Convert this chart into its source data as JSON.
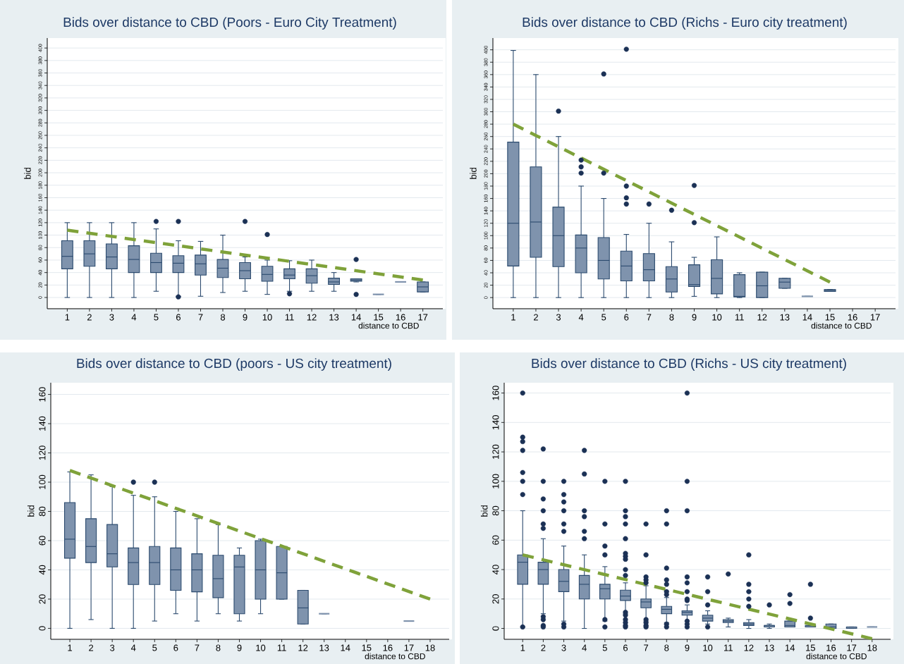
{
  "chart_data": [
    {
      "type": "box",
      "title": "Bids over distance to CBD (Poors - Euro City Treatment)",
      "xlabel": "distance to CBD",
      "ylabel": "bid",
      "categories": [
        "1",
        "2",
        "3",
        "4",
        "5",
        "6",
        "7",
        "8",
        "9",
        "10",
        "11",
        "12",
        "13",
        "14",
        "15",
        "16",
        "17"
      ],
      "ylim": [
        -18,
        416
      ],
      "yticks": [
        0,
        20,
        40,
        60,
        80,
        100,
        120,
        140,
        160,
        180,
        200,
        220,
        240,
        260,
        280,
        300,
        320,
        340,
        360,
        380,
        400
      ],
      "grid": "y",
      "line_style": "dashed",
      "series": [
        {
          "type": "box",
          "color": "#7f93ad",
          "boxes": [
            {
              "low": 0,
              "q1": 46,
              "median": 66,
              "q3": 91,
              "high": 120
            },
            {
              "low": 0,
              "q1": 50,
              "median": 70,
              "q3": 91,
              "high": 120
            },
            {
              "low": 0,
              "q1": 46,
              "median": 65,
              "q3": 86,
              "high": 120
            },
            {
              "low": 0,
              "q1": 40,
              "median": 61,
              "q3": 83,
              "high": 120
            },
            {
              "low": 10,
              "q1": 40,
              "median": 56,
              "q3": 71,
              "high": 110,
              "outliers": [
                122
              ]
            },
            {
              "low": 2,
              "q1": 40,
              "median": 55,
              "q3": 67,
              "high": 91,
              "outliers": [
                122,
                1
              ]
            },
            {
              "low": 2,
              "q1": 36,
              "median": 54,
              "q3": 68,
              "high": 90
            },
            {
              "low": 8,
              "q1": 32,
              "median": 47,
              "q3": 61,
              "high": 100
            },
            {
              "low": 10,
              "q1": 30,
              "median": 43,
              "q3": 56,
              "high": 65,
              "outliers": [
                122
              ]
            },
            {
              "low": 5,
              "q1": 26,
              "median": 37,
              "q3": 50,
              "high": 60,
              "outliers": [
                101
              ]
            },
            {
              "low": 10,
              "q1": 30,
              "median": 36,
              "q3": 46,
              "high": 59,
              "outliers": [
                6
              ]
            },
            {
              "low": 10,
              "q1": 23,
              "median": 35,
              "q3": 46,
              "high": 60
            },
            {
              "low": 10,
              "q1": 21,
              "median": 25,
              "q3": 31,
              "high": 40
            },
            {
              "low": 25,
              "q1": 26,
              "median": 28,
              "q3": 30,
              "high": 30,
              "outliers": [
                61,
                5
              ]
            },
            {
              "low": 5,
              "q1": 5,
              "median": 5,
              "q3": 5,
              "high": 5
            },
            {
              "low": 25,
              "q1": 25,
              "median": 25,
              "q3": 25,
              "high": 25
            },
            {
              "low": 9,
              "q1": 9,
              "median": 17,
              "q3": 25,
              "high": 25
            }
          ]
        },
        {
          "type": "line",
          "color": "#7fa23a",
          "x": [
            "1",
            "17"
          ],
          "values": [
            108,
            28
          ]
        }
      ]
    },
    {
      "type": "box",
      "title": "Bids over distance to CBD (Richs - Euro city treatment)",
      "xlabel": "distance to CBD",
      "ylabel": "bid",
      "categories": [
        "1",
        "2",
        "3",
        "4",
        "5",
        "6",
        "7",
        "8",
        "9",
        "10",
        "11",
        "12",
        "13",
        "14",
        "15",
        "16",
        "17"
      ],
      "ylim": [
        -18,
        419
      ],
      "yticks": [
        0,
        20,
        40,
        60,
        80,
        100,
        120,
        140,
        160,
        180,
        200,
        220,
        240,
        260,
        280,
        300,
        320,
        340,
        360,
        380,
        400
      ],
      "grid": "y",
      "line_style": "dashed",
      "series": [
        {
          "type": "box",
          "color": "#7f93ad",
          "boxes": [
            {
              "low": 0,
              "q1": 51,
              "median": 120,
              "q3": 251,
              "high": 399
            },
            {
              "low": 0,
              "q1": 65,
              "median": 122,
              "q3": 211,
              "high": 360
            },
            {
              "low": 0,
              "q1": 50,
              "median": 100,
              "q3": 146,
              "high": 260,
              "outliers": [
                301
              ]
            },
            {
              "low": 0,
              "q1": 40,
              "median": 80,
              "q3": 101,
              "high": 180,
              "outliers": [
                222,
                211,
                201
              ]
            },
            {
              "low": 0,
              "q1": 30,
              "median": 60,
              "q3": 97,
              "high": 160,
              "outliers": [
                361,
                201
              ]
            },
            {
              "low": 0,
              "q1": 27,
              "median": 51,
              "q3": 75,
              "high": 102,
              "outliers": [
                401,
                180,
                161,
                151
              ]
            },
            {
              "low": 0,
              "q1": 27,
              "median": 45,
              "q3": 71,
              "high": 120,
              "outliers": [
                151
              ]
            },
            {
              "low": 0,
              "q1": 9,
              "median": 30,
              "q3": 50,
              "high": 90,
              "outliers": [
                141
              ]
            },
            {
              "low": 2,
              "q1": 18,
              "median": 21,
              "q3": 53,
              "high": 65,
              "outliers": [
                181,
                121
              ]
            },
            {
              "low": 0,
              "q1": 6,
              "median": 31,
              "q3": 61,
              "high": 98
            },
            {
              "low": 0,
              "q1": 1,
              "median": 2,
              "q3": 37,
              "high": 40
            },
            {
              "low": 0,
              "q1": 0,
              "median": 19,
              "q3": 41,
              "high": 41
            },
            {
              "low": 15,
              "q1": 15,
              "median": 25,
              "q3": 31,
              "high": 31
            },
            {
              "low": 2,
              "q1": 2,
              "median": 2,
              "q3": 2,
              "high": 2
            },
            {
              "low": 10,
              "q1": 10,
              "median": 12,
              "q3": 13,
              "high": 13
            },
            null,
            null
          ]
        },
        {
          "type": "line",
          "color": "#7fa23a",
          "x": [
            "1",
            "15"
          ],
          "values": [
            280,
            25
          ]
        }
      ]
    },
    {
      "type": "box",
      "title": "Bids over distance to CBD (poors - US city treatment)",
      "xlabel": "distance to CBD",
      "ylabel": "bid",
      "categories": [
        "1",
        "2",
        "3",
        "4",
        "5",
        "6",
        "7",
        "8",
        "9",
        "10",
        "11",
        "12",
        "13",
        "14",
        "15",
        "16",
        "17",
        "18"
      ],
      "ylim": [
        -7.5,
        168
      ],
      "yticks": [
        0,
        20,
        40,
        60,
        80,
        100,
        120,
        140,
        160
      ],
      "grid": "y",
      "line_style": "dashed",
      "series": [
        {
          "type": "box",
          "color": "#7f93ad",
          "boxes": [
            {
              "low": 0,
              "q1": 48,
              "median": 61,
              "q3": 86,
              "high": 107
            },
            {
              "low": 6,
              "q1": 45,
              "median": 56,
              "q3": 75,
              "high": 105
            },
            {
              "low": 0,
              "q1": 42,
              "median": 51,
              "q3": 71,
              "high": 97
            },
            {
              "low": 0,
              "q1": 30,
              "median": 45,
              "q3": 55,
              "high": 91,
              "outliers": [
                100
              ]
            },
            {
              "low": 5,
              "q1": 30,
              "median": 45,
              "q3": 56,
              "high": 90,
              "outliers": [
                100
              ]
            },
            {
              "low": 10,
              "q1": 26,
              "median": 40,
              "q3": 55,
              "high": 80
            },
            {
              "low": 5,
              "q1": 25,
              "median": 40,
              "q3": 51,
              "high": 75
            },
            {
              "low": 10,
              "q1": 21,
              "median": 34,
              "q3": 50,
              "high": 71
            },
            {
              "low": 5,
              "q1": 10,
              "median": 42,
              "q3": 50,
              "high": 55
            },
            {
              "low": 10,
              "q1": 20,
              "median": 40,
              "q3": 60,
              "high": 61
            },
            {
              "low": 20,
              "q1": 20,
              "median": 38,
              "q3": 56,
              "high": 56
            },
            {
              "low": 3,
              "q1": 3,
              "median": 14,
              "q3": 26,
              "high": 26
            },
            {
              "low": 10,
              "q1": 10,
              "median": 10,
              "q3": 10,
              "high": 10
            },
            null,
            null,
            null,
            {
              "low": 5,
              "q1": 5,
              "median": 5,
              "q3": 5,
              "high": 5
            },
            null
          ]
        },
        {
          "type": "line",
          "color": "#7fa23a",
          "x": [
            "1",
            "18"
          ],
          "values": [
            108,
            20
          ]
        }
      ]
    },
    {
      "type": "box",
      "title": "Bids over distance to CBD (Richs - US city treatment)",
      "xlabel": "distance to CBD",
      "ylabel": "bid",
      "categories": [
        "1",
        "2",
        "3",
        "4",
        "5",
        "6",
        "7",
        "8",
        "9",
        "10",
        "11",
        "12",
        "13",
        "14",
        "15",
        "16",
        "17",
        "18"
      ],
      "ylim": [
        -7.4,
        167
      ],
      "yticks": [
        0,
        20,
        40,
        60,
        80,
        100,
        120,
        140,
        160
      ],
      "grid": "y",
      "line_style": "dashed",
      "series": [
        {
          "type": "box",
          "color": "#7f93ad",
          "boxes": [
            {
              "low": 1,
              "q1": 30,
              "median": 45,
              "q3": 50,
              "high": 80,
              "outliers": [
                160,
                130,
                127,
                121,
                106,
                100,
                91,
                1
              ]
            },
            {
              "low": 10,
              "q1": 30,
              "median": 40,
              "q3": 45,
              "high": 61,
              "outliers": [
                122,
                100,
                88,
                80,
                71,
                68,
                8,
                6,
                2,
                1
              ]
            },
            {
              "low": 5,
              "q1": 25,
              "median": 32,
              "q3": 40,
              "high": 56,
              "outliers": [
                100,
                91,
                86,
                80,
                71,
                66,
                3,
                1
              ]
            },
            {
              "low": 0,
              "q1": 20,
              "median": 30,
              "q3": 36,
              "high": 50,
              "outliers": [
                121,
                105,
                80,
                76,
                66,
                61
              ]
            },
            {
              "low": 5,
              "q1": 20,
              "median": 27,
              "q3": 30,
              "high": 42,
              "outliers": [
                100,
                71,
                56,
                50,
                6,
                1
              ]
            },
            {
              "low": 10,
              "q1": 19,
              "median": 22,
              "q3": 26,
              "high": 31,
              "outliers": [
                100,
                80,
                76,
                71,
                61,
                51,
                49,
                47,
                40,
                36,
                11,
                9,
                6,
                4,
                2,
                1
              ]
            },
            {
              "low": 5,
              "q1": 14,
              "median": 18,
              "q3": 20,
              "high": 29,
              "outliers": [
                71,
                50,
                35,
                33,
                31,
                6,
                4,
                2,
                1
              ]
            },
            {
              "low": 4,
              "q1": 10,
              "median": 13,
              "q3": 15,
              "high": 21,
              "outliers": [
                80,
                71,
                41,
                33,
                30,
                25,
                23,
                3,
                1
              ]
            },
            {
              "low": 5,
              "q1": 9,
              "median": 11,
              "q3": 12,
              "high": 16,
              "outliers": [
                160,
                100,
                80,
                35,
                31,
                25,
                20,
                19,
                5,
                3,
                1
              ]
            },
            {
              "low": 3,
              "q1": 5,
              "median": 7,
              "q3": 9,
              "high": 12,
              "outliers": [
                35,
                25,
                16,
                1
              ]
            },
            {
              "low": 1,
              "q1": 4,
              "median": 5,
              "q3": 6,
              "high": 7,
              "outliers": [
                37
              ]
            },
            {
              "low": 0,
              "q1": 2,
              "median": 3,
              "q3": 4,
              "high": 6,
              "outliers": [
                50,
                30,
                25,
                20,
                15
              ]
            },
            {
              "low": 0,
              "q1": 1,
              "median": 2,
              "q3": 2,
              "high": 3,
              "outliers": [
                16
              ]
            },
            {
              "low": 1,
              "q1": 1,
              "median": 2,
              "q3": 5,
              "high": 5,
              "outliers": [
                23,
                17
              ]
            },
            {
              "low": 1,
              "q1": 1,
              "median": 2,
              "q3": 2,
              "high": 2,
              "outliers": [
                30,
                7
              ]
            },
            {
              "low": 0,
              "q1": 0,
              "median": 1,
              "q3": 3,
              "high": 3
            },
            {
              "low": 0,
              "q1": 0,
              "median": 1,
              "q3": 1,
              "high": 1
            },
            {
              "low": 1,
              "q1": 1,
              "median": 1,
              "q3": 1,
              "high": 1
            }
          ]
        },
        {
          "type": "line",
          "color": "#7fa23a",
          "x": [
            "1",
            "18"
          ],
          "values": [
            50,
            -7
          ]
        }
      ]
    }
  ]
}
